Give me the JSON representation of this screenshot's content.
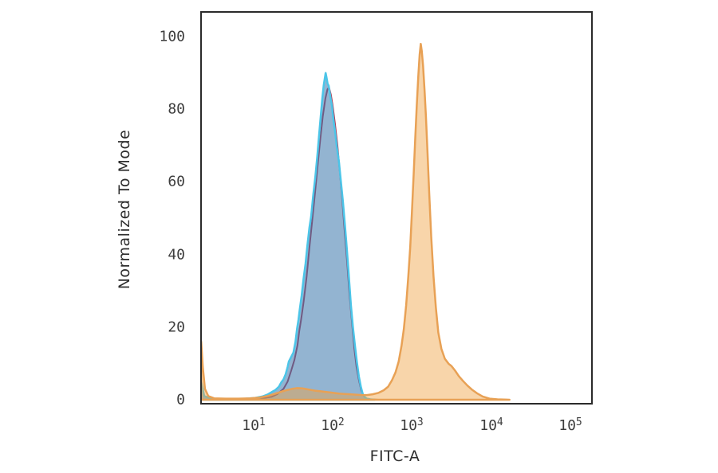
{
  "figure": {
    "background": "#ffffff",
    "border_color": "#2b2b2b"
  },
  "axes": {
    "tick_color": "#3d3d3d",
    "y_ticks": [
      {
        "label": "100",
        "value": 100
      },
      {
        "label": "80",
        "value": 80
      },
      {
        "label": "60",
        "value": 60
      },
      {
        "label": "40",
        "value": 40
      },
      {
        "label": "20",
        "value": 20
      },
      {
        "label": "0",
        "value": 0
      }
    ],
    "x_ticks": [
      {
        "base": "10",
        "exp": "1",
        "log": 1
      },
      {
        "base": "10",
        "exp": "2",
        "log": 2
      },
      {
        "base": "10",
        "exp": "3",
        "log": 3
      },
      {
        "base": "10",
        "exp": "4",
        "log": 4
      },
      {
        "base": "10",
        "exp": "5",
        "log": 5
      }
    ]
  },
  "chart_data": {
    "type": "area",
    "title": "",
    "xlabel": "FITC-A",
    "ylabel": "Normalized To Mode",
    "x_scale": "log10",
    "x_log_range": [
      0.34,
      5.27
    ],
    "y_range": [
      -1.1,
      106.8
    ],
    "grid": false,
    "legend": "none",
    "series": [
      {
        "name": "red_curve",
        "stroke": "#b23a52",
        "stroke_width": 2,
        "fill": "none",
        "points": [
          [
            3,
            0
          ],
          [
            7,
            0.1
          ],
          [
            10,
            0.2
          ],
          [
            14,
            0.5
          ],
          [
            17,
            0.8
          ],
          [
            20,
            1.5
          ],
          [
            24,
            3
          ],
          [
            27,
            5
          ],
          [
            30,
            8
          ],
          [
            33,
            11
          ],
          [
            36,
            15
          ],
          [
            38,
            19
          ],
          [
            40,
            22
          ],
          [
            43,
            27
          ],
          [
            47,
            34
          ],
          [
            51,
            42
          ],
          [
            55,
            49
          ],
          [
            60,
            57
          ],
          [
            65,
            65
          ],
          [
            70,
            72
          ],
          [
            75,
            78
          ],
          [
            81,
            83
          ],
          [
            86,
            85.5
          ],
          [
            90,
            86
          ],
          [
            95,
            84
          ],
          [
            100,
            81
          ],
          [
            107,
            76
          ],
          [
            115,
            70
          ],
          [
            123,
            63
          ],
          [
            132,
            55
          ],
          [
            141,
            47
          ],
          [
            152,
            38
          ],
          [
            163,
            29
          ],
          [
            175,
            21.5
          ],
          [
            188,
            14
          ],
          [
            200,
            9
          ],
          [
            214,
            5.5
          ],
          [
            230,
            2.5
          ],
          [
            247,
            1
          ],
          [
            265,
            0.4
          ],
          [
            290,
            0.1
          ],
          [
            380,
            0
          ]
        ]
      },
      {
        "name": "blue_curve",
        "stroke": "#4cc5e8",
        "stroke_width": 2.5,
        "fill": "rgba(58,118,172,0.55)",
        "points": [
          [
            2.2,
            5
          ],
          [
            2.4,
            1
          ],
          [
            3,
            0.2
          ],
          [
            5,
            0.1
          ],
          [
            8,
            0.3
          ],
          [
            10.5,
            0.5
          ],
          [
            13,
            0.9
          ],
          [
            15,
            1.4
          ],
          [
            17,
            2.1
          ],
          [
            19,
            2.7
          ],
          [
            21,
            3.6
          ],
          [
            22.5,
            4.8
          ],
          [
            24,
            5.6
          ],
          [
            25.5,
            7
          ],
          [
            27,
            9
          ],
          [
            28,
            10.5
          ],
          [
            30,
            11.8
          ],
          [
            32,
            13
          ],
          [
            34,
            16
          ],
          [
            35.5,
            19.5
          ],
          [
            37,
            22
          ],
          [
            38.5,
            25
          ],
          [
            40.5,
            28.5
          ],
          [
            43,
            33.5
          ],
          [
            45.5,
            37.5
          ],
          [
            48,
            42.5
          ],
          [
            51,
            47.5
          ],
          [
            53.5,
            50.5
          ],
          [
            57,
            56.5
          ],
          [
            60.5,
            61.5
          ],
          [
            64,
            67
          ],
          [
            67.5,
            73
          ],
          [
            71,
            78.5
          ],
          [
            74,
            83
          ],
          [
            77,
            86.5
          ],
          [
            79.5,
            88.5
          ],
          [
            81.5,
            90
          ],
          [
            84,
            88.5
          ],
          [
            86.5,
            87
          ],
          [
            89,
            86.5
          ],
          [
            92,
            84.5
          ],
          [
            95,
            82.5
          ],
          [
            98,
            81
          ],
          [
            102,
            77.5
          ],
          [
            107,
            74
          ],
          [
            113,
            69.5
          ],
          [
            120,
            65.5
          ],
          [
            128,
            59.5
          ],
          [
            135,
            54.5
          ],
          [
            143,
            48
          ],
          [
            151,
            41.5
          ],
          [
            160,
            34
          ],
          [
            170,
            26
          ],
          [
            180,
            20
          ],
          [
            191,
            15
          ],
          [
            202,
            10.5
          ],
          [
            214,
            6.5
          ],
          [
            227,
            3.5
          ],
          [
            240,
            1.5
          ],
          [
            255,
            0.7
          ],
          [
            269,
            0.3
          ],
          [
            300,
            0.1
          ],
          [
            340,
            0
          ]
        ]
      },
      {
        "name": "orange_curve",
        "stroke": "#e8a155",
        "stroke_width": 2.5,
        "fill": "rgba(240,162,66,0.45)",
        "points": [
          [
            2.2,
            16
          ],
          [
            2.3,
            9
          ],
          [
            2.45,
            3
          ],
          [
            2.7,
            1
          ],
          [
            3.2,
            0.4
          ],
          [
            4.5,
            0.3
          ],
          [
            6.5,
            0.3
          ],
          [
            9,
            0.4
          ],
          [
            12,
            0.6
          ],
          [
            15,
            1
          ],
          [
            18,
            1.5
          ],
          [
            21,
            2
          ],
          [
            24,
            2.4
          ],
          [
            27,
            2.7
          ],
          [
            31,
            3
          ],
          [
            36,
            3.2
          ],
          [
            42,
            3.1
          ],
          [
            50,
            2.8
          ],
          [
            60,
            2.5
          ],
          [
            72,
            2.3
          ],
          [
            85,
            2.1
          ],
          [
            100,
            1.9
          ],
          [
            120,
            1.7
          ],
          [
            140,
            1.6
          ],
          [
            165,
            1.5
          ],
          [
            195,
            1.4
          ],
          [
            230,
            1.3
          ],
          [
            270,
            1.3
          ],
          [
            320,
            1.5
          ],
          [
            380,
            1.9
          ],
          [
            440,
            2.6
          ],
          [
            500,
            3.6
          ],
          [
            560,
            5.4
          ],
          [
            620,
            7.5
          ],
          [
            680,
            10.5
          ],
          [
            740,
            15
          ],
          [
            790,
            19.5
          ],
          [
            845,
            26
          ],
          [
            900,
            34
          ],
          [
            950,
            42
          ],
          [
            1000,
            52
          ],
          [
            1050,
            62
          ],
          [
            1100,
            72
          ],
          [
            1150,
            81
          ],
          [
            1200,
            89
          ],
          [
            1250,
            95
          ],
          [
            1290,
            98
          ],
          [
            1330,
            96
          ],
          [
            1380,
            92
          ],
          [
            1440,
            85.5
          ],
          [
            1500,
            78
          ],
          [
            1570,
            68
          ],
          [
            1650,
            57
          ],
          [
            1750,
            45
          ],
          [
            1870,
            34
          ],
          [
            2000,
            25.5
          ],
          [
            2150,
            18.5
          ],
          [
            2350,
            14
          ],
          [
            2600,
            11.3
          ],
          [
            2900,
            9.9
          ],
          [
            3150,
            9.3
          ],
          [
            3500,
            8
          ],
          [
            3900,
            6.5
          ],
          [
            4400,
            5.2
          ],
          [
            5000,
            3.9
          ],
          [
            5700,
            2.8
          ],
          [
            6600,
            1.8
          ],
          [
            7800,
            0.9
          ],
          [
            9500,
            0.3
          ],
          [
            12000,
            0.1
          ],
          [
            17000,
            0
          ]
        ]
      }
    ]
  }
}
